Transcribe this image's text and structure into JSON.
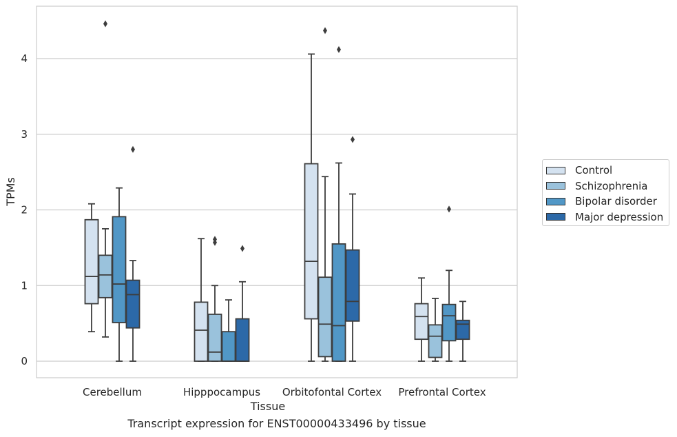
{
  "chart_data": {
    "type": "boxplot",
    "caption": "Transcript expression for ENST00000433496 by tissue",
    "xlabel": "Tissue",
    "ylabel": "TPMs",
    "ylim": [
      -0.22,
      4.7
    ],
    "yticks": [
      0,
      1,
      2,
      3,
      4
    ],
    "grid": "horizontal",
    "legend_position": "right",
    "categories": [
      "Cerebellum",
      "Hipppocampus",
      "Orbitofontal Cortex",
      "Prefrontal Cortex"
    ],
    "series": [
      {
        "name": "Control",
        "color": "#d4e2f0",
        "boxes": [
          {
            "whislo": 0.39,
            "q1": 0.76,
            "med": 1.12,
            "q3": 1.87,
            "whishi": 2.08,
            "fliers": []
          },
          {
            "whislo": 0.0,
            "q1": 0.0,
            "med": 0.41,
            "q3": 0.78,
            "whishi": 1.62,
            "fliers": []
          },
          {
            "whislo": 0.0,
            "q1": 0.56,
            "med": 1.32,
            "q3": 2.61,
            "whishi": 4.06,
            "fliers": []
          },
          {
            "whislo": 0.0,
            "q1": 0.29,
            "med": 0.59,
            "q3": 0.76,
            "whishi": 1.1,
            "fliers": []
          }
        ]
      },
      {
        "name": "Schizophrenia",
        "color": "#9ac2dc",
        "boxes": [
          {
            "whislo": 0.32,
            "q1": 0.84,
            "med": 1.14,
            "q3": 1.4,
            "whishi": 1.75,
            "fliers": [
              4.46
            ]
          },
          {
            "whislo": 0.0,
            "q1": 0.0,
            "med": 0.12,
            "q3": 0.62,
            "whishi": 1.0,
            "fliers": [
              1.57,
              1.61
            ]
          },
          {
            "whislo": 0.0,
            "q1": 0.06,
            "med": 0.49,
            "q3": 1.11,
            "whishi": 2.44,
            "fliers": [
              4.37
            ]
          },
          {
            "whislo": 0.0,
            "q1": 0.05,
            "med": 0.33,
            "q3": 0.48,
            "whishi": 0.83,
            "fliers": []
          }
        ]
      },
      {
        "name": "Bipolar disorder",
        "color": "#5197c6",
        "boxes": [
          {
            "whislo": 0.0,
            "q1": 0.51,
            "med": 1.02,
            "q3": 1.91,
            "whishi": 2.29,
            "fliers": []
          },
          {
            "whislo": 0.0,
            "q1": 0.0,
            "med": 0.0,
            "q3": 0.39,
            "whishi": 0.81,
            "fliers": []
          },
          {
            "whislo": 0.0,
            "q1": 0.0,
            "med": 0.47,
            "q3": 1.55,
            "whishi": 2.62,
            "fliers": [
              4.12
            ]
          },
          {
            "whislo": 0.0,
            "q1": 0.27,
            "med": 0.6,
            "q3": 0.75,
            "whishi": 1.2,
            "fliers": [
              2.01
            ]
          }
        ]
      },
      {
        "name": "Major depression",
        "color": "#2c69a8",
        "boxes": [
          {
            "whislo": 0.0,
            "q1": 0.44,
            "med": 0.88,
            "q3": 1.07,
            "whishi": 1.33,
            "fliers": [
              2.8
            ]
          },
          {
            "whislo": 0.0,
            "q1": 0.0,
            "med": 0.0,
            "q3": 0.56,
            "whishi": 1.05,
            "fliers": [
              1.49
            ]
          },
          {
            "whislo": 0.0,
            "q1": 0.53,
            "med": 0.79,
            "q3": 1.47,
            "whishi": 2.21,
            "fliers": [
              2.93
            ]
          },
          {
            "whislo": 0.0,
            "q1": 0.29,
            "med": 0.49,
            "q3": 0.54,
            "whishi": 0.79,
            "fliers": []
          }
        ]
      }
    ]
  }
}
